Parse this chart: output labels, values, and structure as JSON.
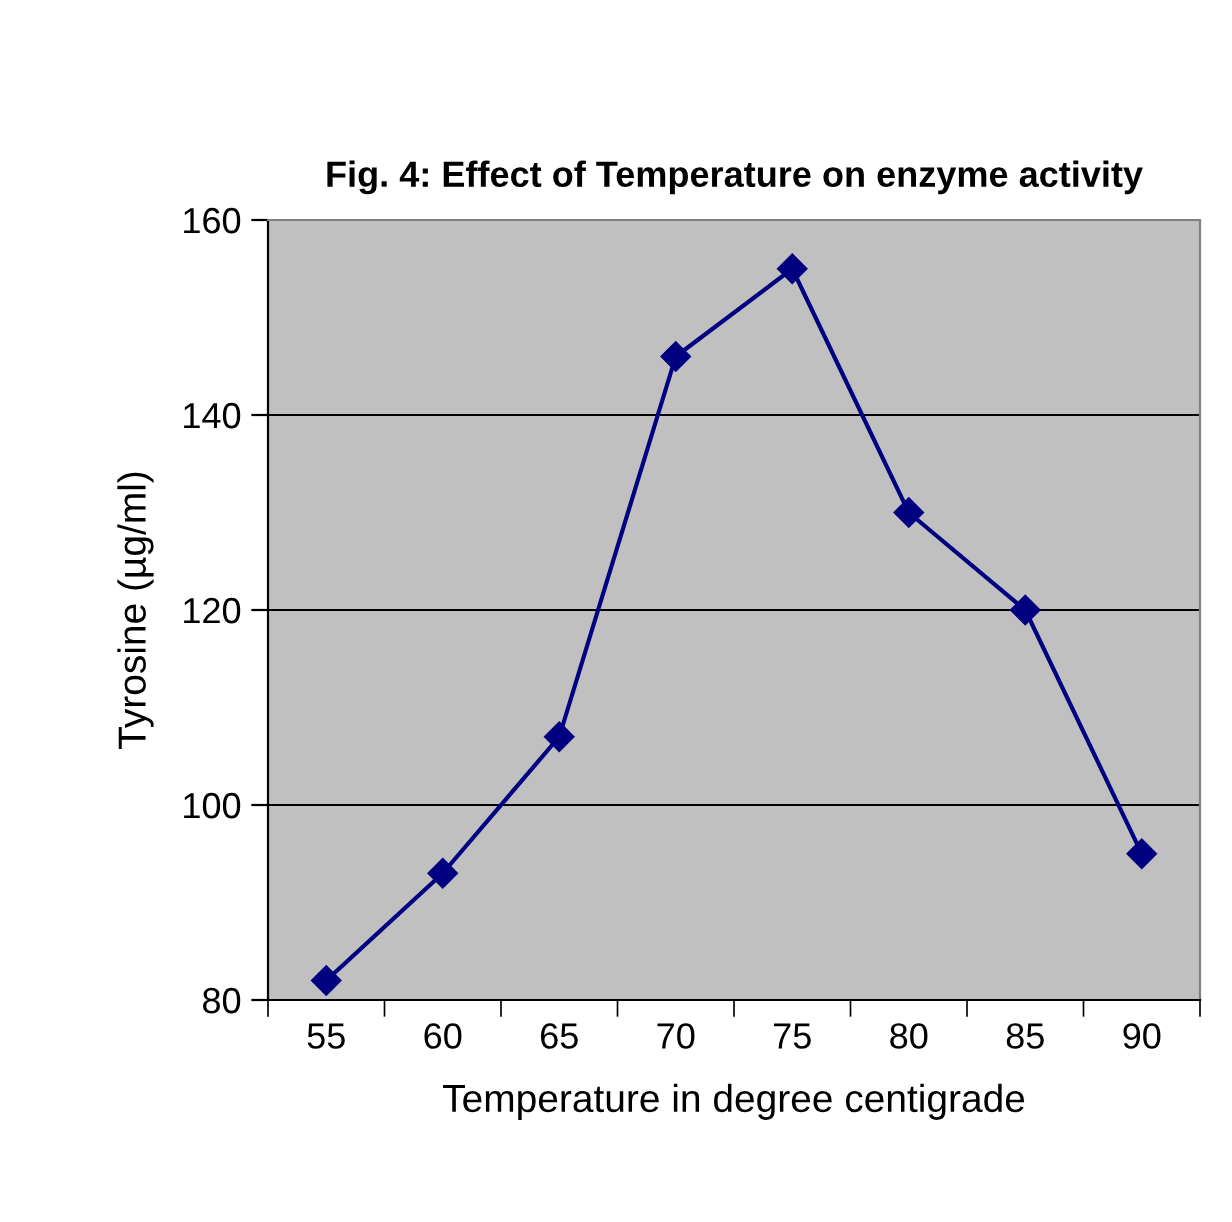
{
  "chart_data": {
    "type": "line",
    "title": "Fig. 4: Effect of Temperature on enzyme activity",
    "xlabel": "Temperature in degree centigrade",
    "ylabel": "Tyrosine (µg/ml)",
    "categories": [
      "55",
      "60",
      "65",
      "70",
      "75",
      "80",
      "85",
      "90"
    ],
    "series": [
      {
        "color": "#000080",
        "values": [
          82,
          93,
          107,
          146,
          155,
          130,
          120,
          95
        ]
      }
    ],
    "ylim": [
      80,
      160
    ],
    "yticks": [
      80,
      100,
      120,
      140,
      160
    ],
    "grid": "y",
    "marker": "diamond",
    "line_style": "solid"
  }
}
